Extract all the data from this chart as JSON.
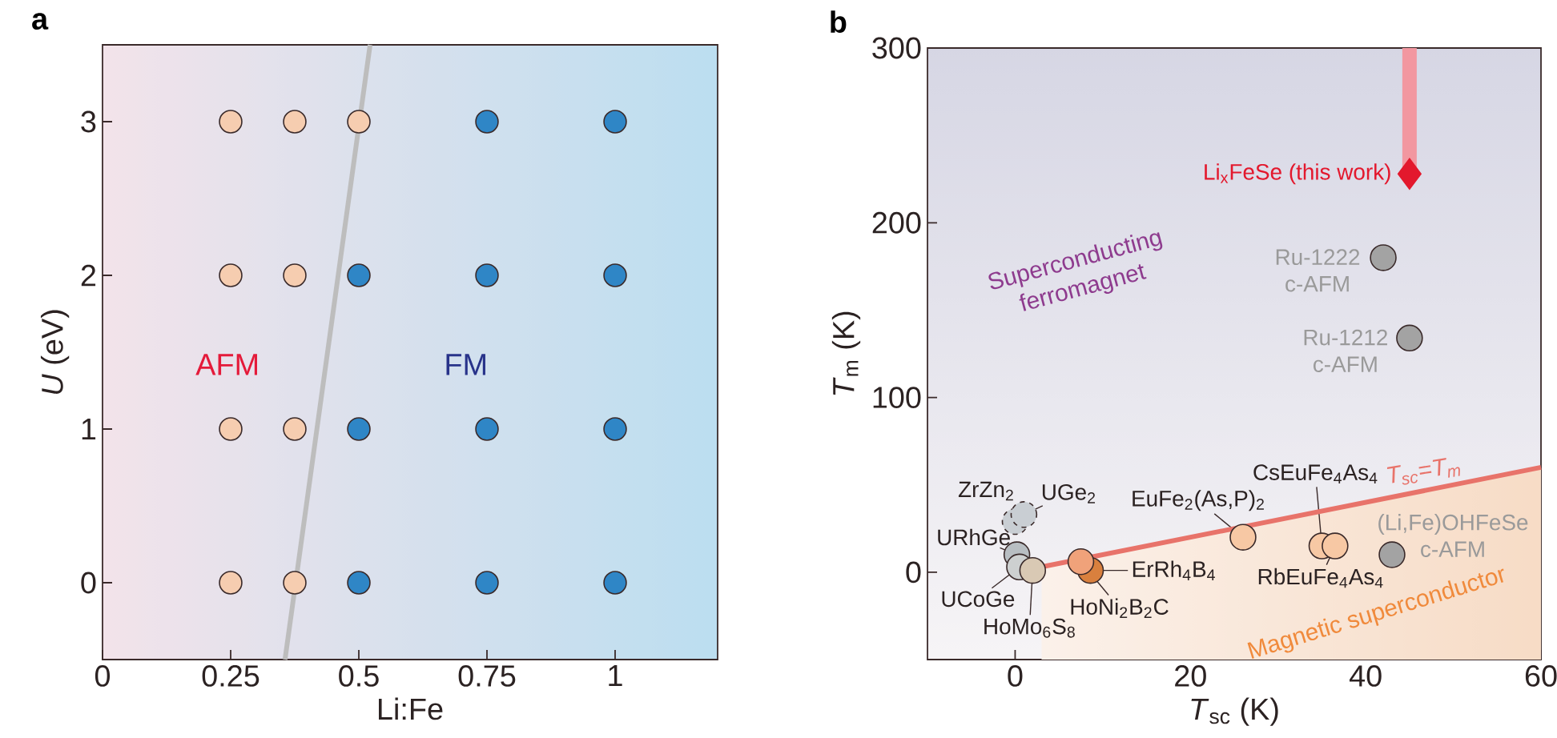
{
  "chart_data": [
    {
      "type": "scatter",
      "title": "a",
      "xlabel": "Li:Fe",
      "ylabel": "*U* (eV)",
      "xlim": [
        0,
        1.2
      ],
      "ylim": [
        -0.5,
        3.5
      ],
      "xticks": [
        0,
        0.25,
        0.5,
        0.75,
        1
      ],
      "yticks": [
        0,
        1,
        2,
        3
      ],
      "marker": "circle",
      "annotations": [
        "AFM",
        "FM"
      ],
      "series": [
        {
          "color": "#f6cdb0",
          "x": [
            0.25,
            0.25,
            0.25,
            0.25,
            0.375,
            0.375,
            0.375,
            0.375,
            0.5
          ],
          "values": [
            0,
            1,
            2,
            3,
            0,
            1,
            2,
            3,
            3
          ]
        },
        {
          "color": "#2f86c6",
          "x": [
            0.5,
            0.5,
            0.5,
            0.75,
            0.75,
            0.75,
            0.75,
            1,
            1,
            1,
            1
          ],
          "values": [
            0,
            1,
            2,
            0,
            1,
            2,
            3,
            0,
            1,
            2,
            3
          ]
        },
        {
          "type": "line",
          "color": "#bdbdbd",
          "marker": "none",
          "x": [
            0.356,
            0.522
          ],
          "values": [
            -0.5,
            3.5
          ]
        }
      ]
    },
    {
      "type": "scatter",
      "title": "b",
      "xlabel": "*T*$_{sc}$ (K)",
      "ylabel": "*T*$_{m}$ (K)",
      "xlim": [
        -10,
        60
      ],
      "ylim": [
        -50,
        300
      ],
      "xticks": [
        0,
        20,
        40,
        60
      ],
      "yticks": [
        0,
        100,
        200,
        300
      ],
      "marker": "circle",
      "annotations": [
        {
          "text": "Li$_{x}$FeSe (this work)",
          "x": 45,
          "y": 228
        },
        {
          "text": "Ru-1222 c-AFM",
          "x": 42,
          "y": 180
        },
        {
          "text": "Ru-1212 c-AFM",
          "x": 45,
          "y": 134
        },
        {
          "text": "(Li,Fe)OHFeSe c-AFM",
          "x": 43,
          "y": 10
        },
        {
          "text": "URhGe",
          "x": 0.2,
          "y": 10
        },
        {
          "text": "UCoGe",
          "x": 0.5,
          "y": 3
        },
        {
          "text": "ZrZn$_{2}$",
          "x": 0,
          "y": 29
        },
        {
          "text": "UGe$_{2}$",
          "x": 1,
          "y": 33
        },
        {
          "text": "HoMo$_{6}$S$_{8}$",
          "x": 2,
          "y": 1
        },
        {
          "text": "HoNi$_{2}$B$_{2}$C",
          "x": 7.5,
          "y": 6
        },
        {
          "text": "ErRh$_{4}$B$_{4}$",
          "x": 8.6,
          "y": 1
        },
        {
          "text": "EuFe$_{2}$(As,P)$_{2}$",
          "x": 26,
          "y": 20
        },
        {
          "text": "CsEuFe$_{4}$As$_{4}$",
          "x": 35,
          "y": 15
        },
        {
          "text": "RbEuFe$_{4}$As$_{4}$",
          "x": 36.5,
          "y": 15
        },
        "Superconducting ferromagnet",
        "Magnetic superconductor"
      ],
      "series": [
        {
          "type": "line",
          "name": "*T*$_{sc}$=*T*$_{m}$",
          "color": "#e8736a",
          "marker": "none",
          "x": [
            3,
            60
          ],
          "values": [
            3,
            60
          ]
        },
        {
          "colors": [
            "#b8bec2",
            "#cdd0d0",
            "#a3a3a3",
            "#a3a3a3",
            "#a3a3a3"
          ],
          "x": [
            0.2,
            0.5,
            42,
            45,
            43
          ],
          "values": [
            10,
            3,
            180,
            134,
            10
          ]
        },
        {
          "color": "#c9ced3",
          "line_style": "dashed",
          "x": [
            0,
            1
          ],
          "values": [
            29,
            33
          ]
        },
        {
          "colors": [
            "#d9c9b4",
            "#d9803e",
            "#f0a27a",
            "#f7c8a4",
            "#f7c8a4",
            "#f7c8a4"
          ],
          "x": [
            2,
            8.6,
            7.5,
            26,
            35,
            36.5
          ],
          "values": [
            1,
            1,
            6,
            20,
            15,
            15
          ]
        },
        {
          "color": "#e3182d",
          "marker": "diamond",
          "x": [
            45
          ],
          "values": [
            228
          ],
          "errors": [
            [
              228,
              300
            ]
          ]
        }
      ]
    }
  ]
}
